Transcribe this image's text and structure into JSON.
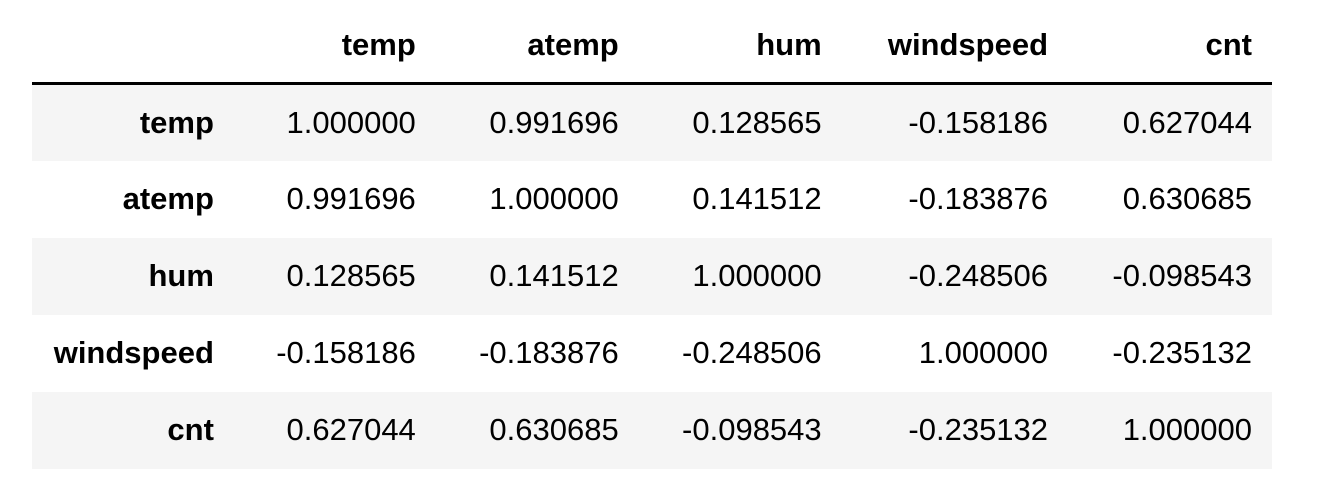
{
  "table": {
    "index_header": "",
    "columns": [
      "temp",
      "atemp",
      "hum",
      "windspeed",
      "cnt"
    ],
    "rows": [
      {
        "label": "temp",
        "values": [
          "1.000000",
          "0.991696",
          "0.128565",
          "-0.158186",
          "0.627044"
        ]
      },
      {
        "label": "atemp",
        "values": [
          "0.991696",
          "1.000000",
          "0.141512",
          "-0.183876",
          "0.630685"
        ]
      },
      {
        "label": "hum",
        "values": [
          "0.128565",
          "0.141512",
          "1.000000",
          "-0.248506",
          "-0.098543"
        ]
      },
      {
        "label": "windspeed",
        "values": [
          "-0.158186",
          "-0.183876",
          "-0.248506",
          "1.000000",
          "-0.235132"
        ]
      },
      {
        "label": "cnt",
        "values": [
          "0.627044",
          "0.630685",
          "-0.098543",
          "-0.235132",
          "1.000000"
        ]
      }
    ]
  },
  "colors": {
    "striped_row_background": "#f5f5f5",
    "header_rule": "#000000"
  }
}
